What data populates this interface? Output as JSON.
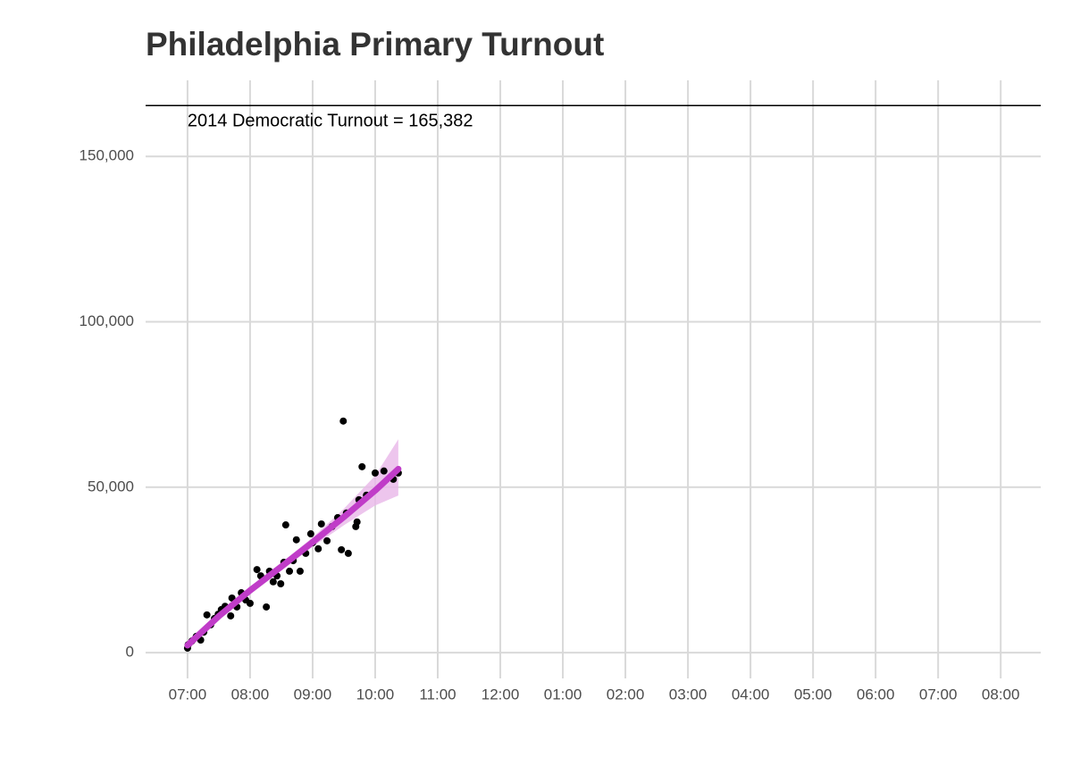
{
  "chart_data": {
    "type": "scatter",
    "title": "Philadelphia Primary Turnout",
    "points": {
      "color": "#000000",
      "x": [
        7.0,
        7.01,
        7.07,
        7.14,
        7.21,
        7.26,
        7.31,
        7.37,
        7.43,
        7.49,
        7.54,
        7.6,
        7.69,
        7.71,
        7.79,
        7.86,
        7.93,
        8.0,
        8.11,
        8.17,
        8.26,
        8.31,
        8.37,
        8.43,
        8.49,
        8.54,
        8.57,
        8.63,
        8.69,
        8.74,
        8.8,
        8.89,
        8.97,
        9.0,
        9.09,
        9.14,
        9.23,
        9.31,
        9.4,
        9.46,
        9.49,
        9.54,
        9.57,
        9.69,
        9.71,
        9.74,
        9.79,
        9.86,
        10.0,
        10.14,
        10.29,
        10.37
      ],
      "y": [
        1350,
        2400,
        3500,
        4900,
        3800,
        6200,
        11400,
        8400,
        10300,
        11600,
        13000,
        14000,
        11100,
        16500,
        13800,
        18100,
        15900,
        14900,
        25100,
        23200,
        13800,
        24600,
        21400,
        23200,
        20800,
        27300,
        38600,
        24600,
        27800,
        34100,
        24600,
        30000,
        35900,
        33200,
        31400,
        38900,
        33800,
        38100,
        40800,
        31100,
        70000,
        42200,
        30000,
        38100,
        39500,
        46200,
        56200,
        47600,
        54300,
        54900,
        52400,
        54300
      ]
    },
    "smooth": {
      "color": "#c03cc8",
      "fill": "#e9b6e9",
      "x": [
        7.0,
        7.5,
        8.0,
        8.5,
        9.0,
        9.5,
        10.0,
        10.37
      ],
      "y": [
        2200,
        11000,
        18800,
        26000,
        33400,
        41000,
        49000,
        55500
      ],
      "lower": [
        700,
        9800,
        17700,
        24800,
        32000,
        38500,
        44500,
        47500
      ],
      "upper": [
        3700,
        12200,
        19900,
        27200,
        34800,
        43500,
        53500,
        64500
      ]
    },
    "hline": {
      "value": 165382,
      "label": "2014 Democratic Turnout = 165,382",
      "color": "#000000"
    },
    "xlim": [
      6.33,
      20.64
    ],
    "ylim": [
      -7800,
      173000
    ],
    "xticks": [
      {
        "value": 7,
        "label": "07:00"
      },
      {
        "value": 8,
        "label": "08:00"
      },
      {
        "value": 9,
        "label": "09:00"
      },
      {
        "value": 10,
        "label": "10:00"
      },
      {
        "value": 11,
        "label": "11:00"
      },
      {
        "value": 12,
        "label": "12:00"
      },
      {
        "value": 13,
        "label": "01:00"
      },
      {
        "value": 14,
        "label": "02:00"
      },
      {
        "value": 15,
        "label": "03:00"
      },
      {
        "value": 16,
        "label": "04:00"
      },
      {
        "value": 17,
        "label": "05:00"
      },
      {
        "value": 18,
        "label": "06:00"
      },
      {
        "value": 19,
        "label": "07:00"
      },
      {
        "value": 20,
        "label": "08:00"
      }
    ],
    "yticks": [
      0,
      {
        "value": 50000,
        "label": "50,000"
      },
      {
        "value": 100000,
        "label": "100,000"
      },
      {
        "value": 150000,
        "label": "150,000"
      }
    ],
    "grid": true
  }
}
